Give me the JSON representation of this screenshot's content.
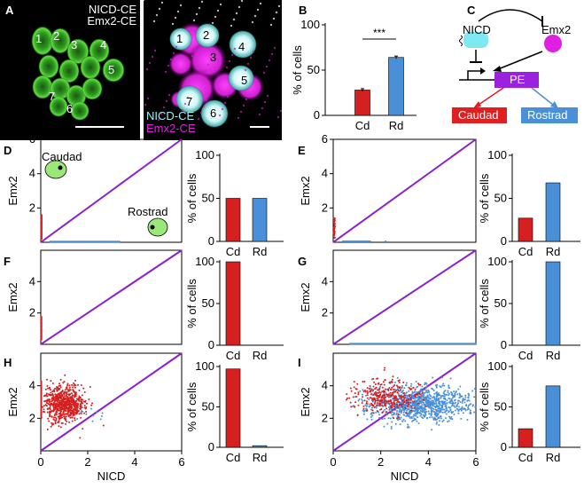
{
  "panel_a": {
    "letter": "A",
    "title_line1": "NICD-CE",
    "title_line2": "Emx2-CE",
    "cells_left": [
      "1",
      "2",
      "3",
      "4",
      "5",
      "7",
      "6"
    ],
    "cells_right": [
      "1",
      "2",
      "3",
      "4",
      "5",
      "7",
      "6"
    ],
    "legend_nicd": "NICD-CE",
    "legend_emx2": "Emx2-CE",
    "colors": {
      "green": "#3fbf2a",
      "magenta": "#e020e0",
      "cyan": "#9ff0f0"
    }
  },
  "panel_b": {
    "letter": "B",
    "significance": "***"
  },
  "panel_c": {
    "letter": "C",
    "nicd_label": "NICD",
    "emx2_label": "Emx2",
    "pe_label": "PE",
    "caudad_label": "Caudad",
    "rostrad_label": "Rostrad",
    "colors": {
      "nicd": "#7fe8f0",
      "emx2": "#e020e0",
      "pe": "#9b20e0",
      "caudad": "#e02020",
      "rostrad": "#4a90d9"
    }
  },
  "letters": {
    "d": "D",
    "e": "E",
    "f": "F",
    "g": "G",
    "h": "H",
    "i": "I"
  },
  "inset": {
    "caudad": "Caudad",
    "rostrad": "Rostrad"
  },
  "chart_data": [
    {
      "id": "B",
      "type": "bar",
      "categories": [
        "Cd",
        "Rd"
      ],
      "values": [
        28,
        64
      ],
      "errors": [
        1.5,
        1.5
      ],
      "ylabel": "% of cells",
      "ylim": [
        0,
        100
      ],
      "yticks": [
        0,
        50,
        100
      ],
      "colors": [
        "#d42020",
        "#4a90d9"
      ]
    },
    {
      "id": "D-scatter",
      "type": "scatter",
      "xlabel": "",
      "ylabel": "Emx2",
      "xlim": [
        0,
        6
      ],
      "ylim": [
        0,
        6
      ],
      "xticks": [],
      "yticks": [
        2,
        4,
        6
      ],
      "diagonal": true
    },
    {
      "id": "D-bar",
      "type": "bar",
      "categories": [
        "Cd",
        "Rd"
      ],
      "values": [
        50,
        50
      ],
      "ylabel": "% of cells",
      "ylim": [
        0,
        100
      ],
      "yticks": [
        0,
        50,
        100
      ]
    },
    {
      "id": "E-scatter",
      "type": "scatter",
      "xlabel": "",
      "ylabel": "Emx2",
      "xlim": [
        0,
        6
      ],
      "ylim": [
        0,
        6
      ],
      "xticks": [],
      "yticks": [
        2,
        4,
        6
      ],
      "diagonal": true
    },
    {
      "id": "E-bar",
      "type": "bar",
      "categories": [
        "Cd",
        "Rd"
      ],
      "values": [
        27,
        68
      ],
      "ylabel": "% of cells",
      "ylim": [
        0,
        100
      ],
      "yticks": [
        0,
        50,
        100
      ]
    },
    {
      "id": "F-scatter",
      "type": "scatter",
      "xlabel": "",
      "ylabel": "Emx2",
      "xlim": [
        0,
        6
      ],
      "ylim": [
        0,
        6
      ],
      "xticks": [],
      "yticks": [
        2,
        4
      ],
      "diagonal": true
    },
    {
      "id": "F-bar",
      "type": "bar",
      "categories": [
        "Cd",
        "Rd"
      ],
      "values": [
        100,
        0
      ],
      "ylabel": "% of cells",
      "ylim": [
        0,
        100
      ],
      "yticks": [
        0,
        50,
        100
      ]
    },
    {
      "id": "G-scatter",
      "type": "scatter",
      "xlabel": "",
      "ylabel": "Emx2",
      "xlim": [
        0,
        6
      ],
      "ylim": [
        0,
        6
      ],
      "xticks": [],
      "yticks": [
        2,
        4
      ],
      "diagonal": true
    },
    {
      "id": "G-bar",
      "type": "bar",
      "categories": [
        "Cd",
        "Rd"
      ],
      "values": [
        0,
        100
      ],
      "ylabel": "% of cells",
      "ylim": [
        0,
        100
      ],
      "yticks": [
        0,
        50,
        100
      ]
    },
    {
      "id": "H-scatter",
      "type": "scatter",
      "xlabel": "NICD",
      "ylabel": "Emx2",
      "xlim": [
        0,
        6
      ],
      "ylim": [
        0,
        6
      ],
      "xticks": [
        0,
        2,
        4,
        6
      ],
      "yticks": [
        2,
        4
      ],
      "diagonal": true
    },
    {
      "id": "H-bar",
      "type": "bar",
      "categories": [
        "Cd",
        "Rd"
      ],
      "values": [
        97,
        2
      ],
      "ylabel": "% of cells",
      "ylim": [
        0,
        100
      ],
      "yticks": [
        0,
        50,
        100
      ]
    },
    {
      "id": "I-scatter",
      "type": "scatter",
      "xlabel": "NICD",
      "ylabel": "Emx2",
      "xlim": [
        0,
        6
      ],
      "ylim": [
        0,
        6
      ],
      "xticks": [
        0,
        2,
        4,
        6
      ],
      "yticks": [
        2,
        4
      ],
      "diagonal": true
    },
    {
      "id": "I-bar",
      "type": "bar",
      "categories": [
        "Cd",
        "Rd"
      ],
      "values": [
        23,
        76
      ],
      "ylabel": "% of cells",
      "ylim": [
        0,
        100
      ],
      "yticks": [
        0,
        50,
        100
      ]
    }
  ]
}
